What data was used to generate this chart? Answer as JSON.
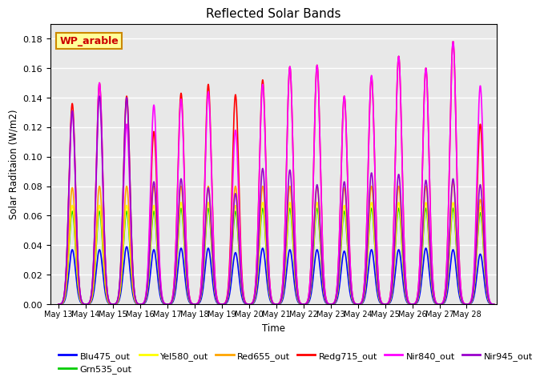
{
  "title": "Reflected Solar Bands",
  "xlabel": "Time",
  "ylabel": "Solar Raditaion (W/m2)",
  "annotation": "WP_arable",
  "annotation_color": "#cc0000",
  "annotation_bg": "#ffff99",
  "annotation_border": "#cc8800",
  "ylim": [
    0,
    0.19
  ],
  "yticks": [
    0.0,
    0.02,
    0.04,
    0.06,
    0.08,
    0.1,
    0.12,
    0.14,
    0.16,
    0.18
  ],
  "xtick_labels": [
    "May 13",
    "May 14",
    "May 15",
    "May 16",
    "May 17",
    "May 18",
    "May 19",
    "May 20",
    "May 21",
    "May 22",
    "May 23",
    "May 24",
    "May 25",
    "May 26",
    "May 27",
    "May 28"
  ],
  "series": [
    {
      "name": "Blu475_out",
      "color": "#0000ff",
      "lw": 1.2
    },
    {
      "name": "Grn535_out",
      "color": "#00cc00",
      "lw": 1.2
    },
    {
      "name": "Yel580_out",
      "color": "#ffff00",
      "lw": 1.2
    },
    {
      "name": "Red655_out",
      "color": "#ffa500",
      "lw": 1.2
    },
    {
      "name": "Redg715_out",
      "color": "#ff0000",
      "lw": 1.2
    },
    {
      "name": "Nir840_out",
      "color": "#ff00ff",
      "lw": 1.2
    },
    {
      "name": "Nir945_out",
      "color": "#9900cc",
      "lw": 1.2
    }
  ],
  "background_color": "#e8e8e8",
  "grid_color": "#ffffff",
  "n_days": 16,
  "day_start": 13,
  "sigma": 0.12,
  "peaks_blu": [
    0.037,
    0.037,
    0.039,
    0.037,
    0.038,
    0.038,
    0.035,
    0.038,
    0.037,
    0.037,
    0.036,
    0.037,
    0.037,
    0.038,
    0.037,
    0.034
  ],
  "peaks_grn": [
    0.063,
    0.063,
    0.063,
    0.063,
    0.065,
    0.065,
    0.063,
    0.065,
    0.065,
    0.065,
    0.063,
    0.065,
    0.065,
    0.065,
    0.065,
    0.062
  ],
  "peaks_yel": [
    0.067,
    0.067,
    0.067,
    0.067,
    0.069,
    0.069,
    0.067,
    0.069,
    0.069,
    0.069,
    0.067,
    0.069,
    0.069,
    0.069,
    0.069,
    0.066
  ],
  "peaks_red": [
    0.079,
    0.08,
    0.08,
    0.08,
    0.08,
    0.08,
    0.08,
    0.08,
    0.08,
    0.08,
    0.079,
    0.08,
    0.08,
    0.08,
    0.083,
    0.071
  ],
  "peaks_redg": [
    0.136,
    0.15,
    0.141,
    0.117,
    0.143,
    0.149,
    0.142,
    0.152,
    0.161,
    0.162,
    0.141,
    0.154,
    0.168,
    0.16,
    0.178,
    0.122
  ],
  "peaks_nir840": [
    0.131,
    0.15,
    0.122,
    0.135,
    0.139,
    0.144,
    0.118,
    0.149,
    0.161,
    0.162,
    0.141,
    0.155,
    0.168,
    0.16,
    0.178,
    0.148
  ],
  "peaks_nir945": [
    0.131,
    0.141,
    0.14,
    0.083,
    0.085,
    0.079,
    0.075,
    0.092,
    0.091,
    0.081,
    0.083,
    0.089,
    0.088,
    0.084,
    0.085,
    0.081
  ]
}
